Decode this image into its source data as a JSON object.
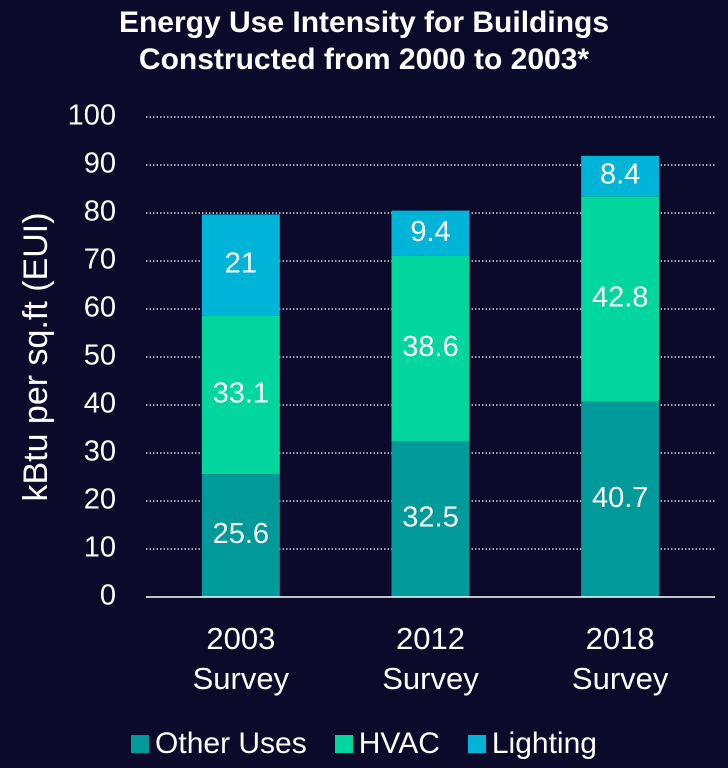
{
  "chart_data": {
    "type": "bar",
    "stacked": true,
    "title": "Energy Use Intensity for Buildings Constructed from 2000 to 2003*",
    "title_lines": [
      "Energy Use Intensity for Buildings",
      "Constructed from 2000 to 2003*"
    ],
    "xlabel": "",
    "ylabel": "kBtu per sq.ft (EUI)",
    "categories": [
      [
        "2003",
        "Survey"
      ],
      [
        "2012",
        "Survey"
      ],
      [
        "2018",
        "Survey"
      ]
    ],
    "ylim": [
      0,
      100
    ],
    "yticks": [
      0,
      10,
      20,
      30,
      40,
      50,
      60,
      70,
      80,
      90,
      100
    ],
    "grid": true,
    "legend_position": "bottom",
    "series": [
      {
        "name": "Other Uses",
        "color": "#009a9a",
        "values": [
          25.6,
          32.5,
          40.7
        ],
        "labels": [
          "25.6",
          "32.5",
          "40.7"
        ]
      },
      {
        "name": "HVAC",
        "color": "#00d69e",
        "values": [
          33.1,
          38.6,
          42.8
        ],
        "labels": [
          "33.1",
          "38.6",
          "42.8"
        ]
      },
      {
        "name": "Lighting",
        "color": "#00b4d8",
        "values": [
          21,
          9.4,
          8.4
        ],
        "labels": [
          "21",
          "9.4",
          "8.4"
        ]
      }
    ]
  }
}
